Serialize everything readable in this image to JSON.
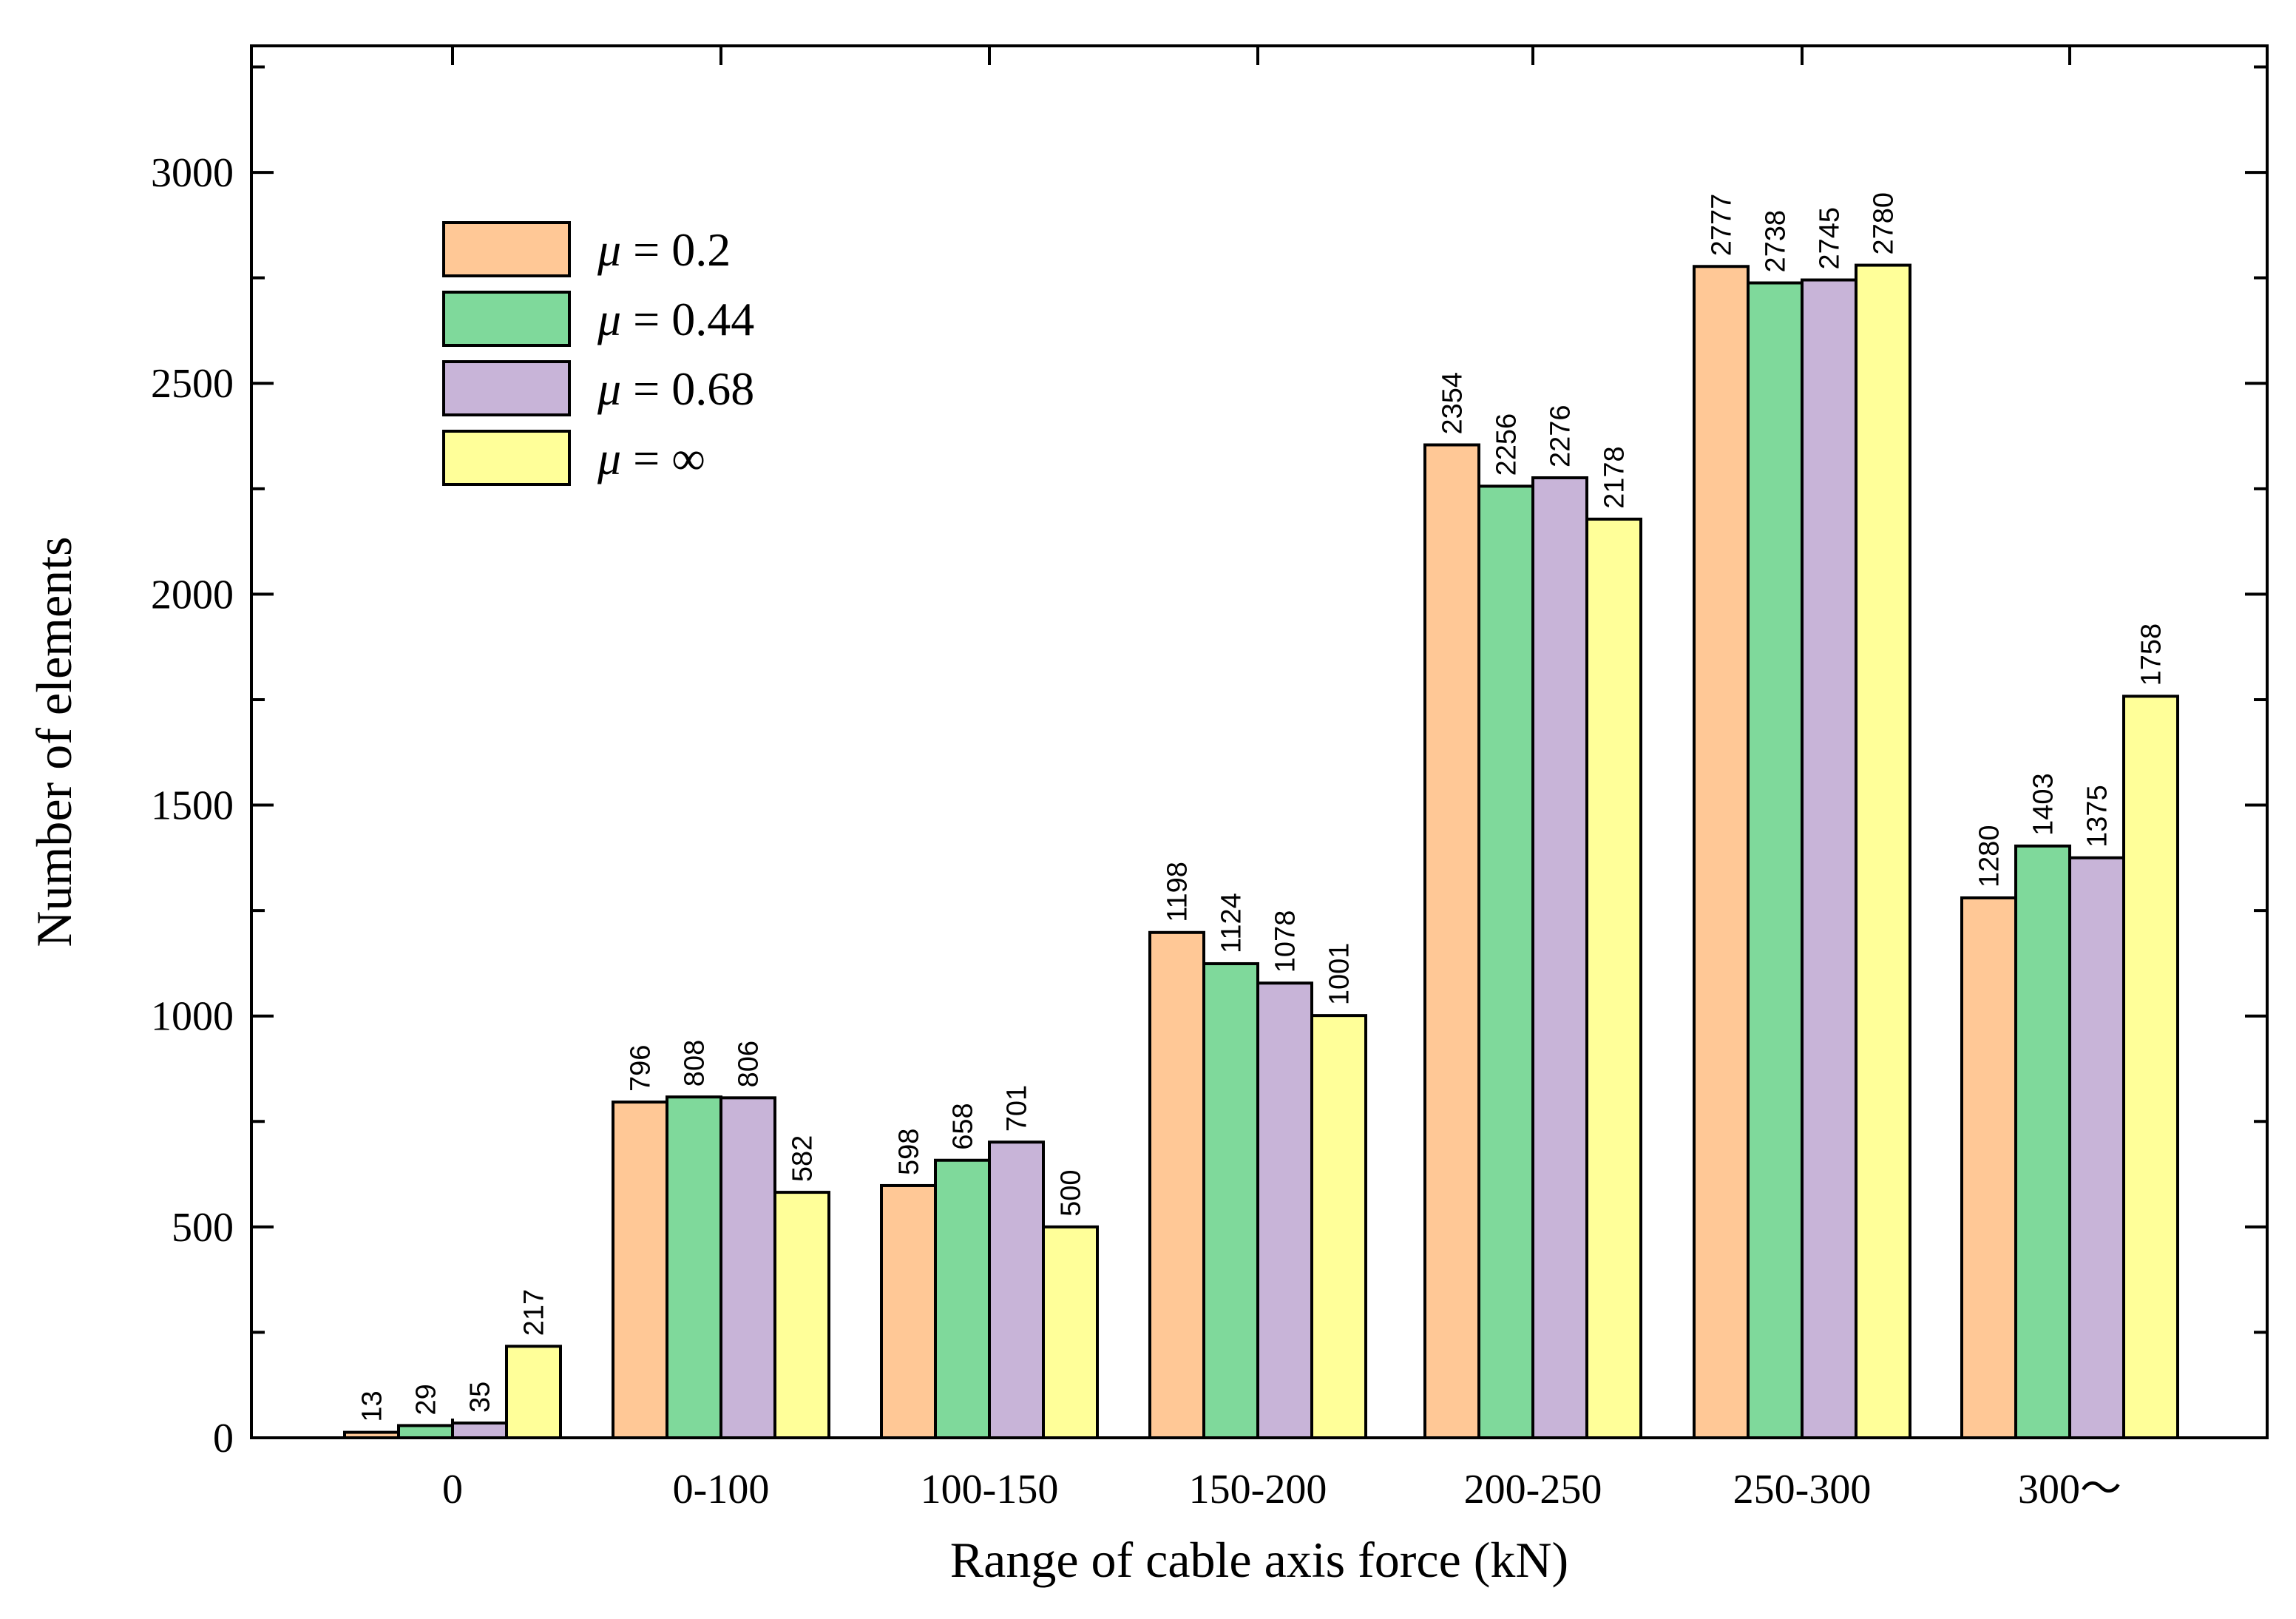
{
  "chart_data": {
    "type": "bar",
    "title": "",
    "xlabel": "Range of cable axis force (kN)",
    "ylabel": "Number of elements",
    "categories": [
      "0",
      "0-100",
      "100-150",
      "150-200",
      "200-250",
      "250-300",
      "300～"
    ],
    "ylim": [
      0,
      3300
    ],
    "yticks": [
      0,
      500,
      1000,
      1500,
      2000,
      2500,
      3000
    ],
    "grid": false,
    "legend_position": "top-left",
    "series": [
      {
        "name": "μ = 0.2",
        "symbol": "μ",
        "value_text": "= 0.2",
        "color": "#FFC896",
        "values": [
          13,
          796,
          598,
          1198,
          2354,
          2777,
          1280
        ]
      },
      {
        "name": "μ = 0.44",
        "symbol": "μ",
        "value_text": "= 0.44",
        "color": "#7FD99B",
        "values": [
          29,
          808,
          658,
          1124,
          2256,
          2738,
          1403
        ]
      },
      {
        "name": "μ = 0.68",
        "symbol": "μ",
        "value_text": "= 0.68",
        "color": "#C8B4D8",
        "values": [
          35,
          806,
          701,
          1078,
          2276,
          2745,
          1375
        ]
      },
      {
        "name": "μ = ∞",
        "symbol": "μ",
        "value_text": "= ∞",
        "color": "#FFFF99",
        "values": [
          217,
          582,
          500,
          1001,
          2178,
          2780,
          1758
        ]
      }
    ]
  }
}
